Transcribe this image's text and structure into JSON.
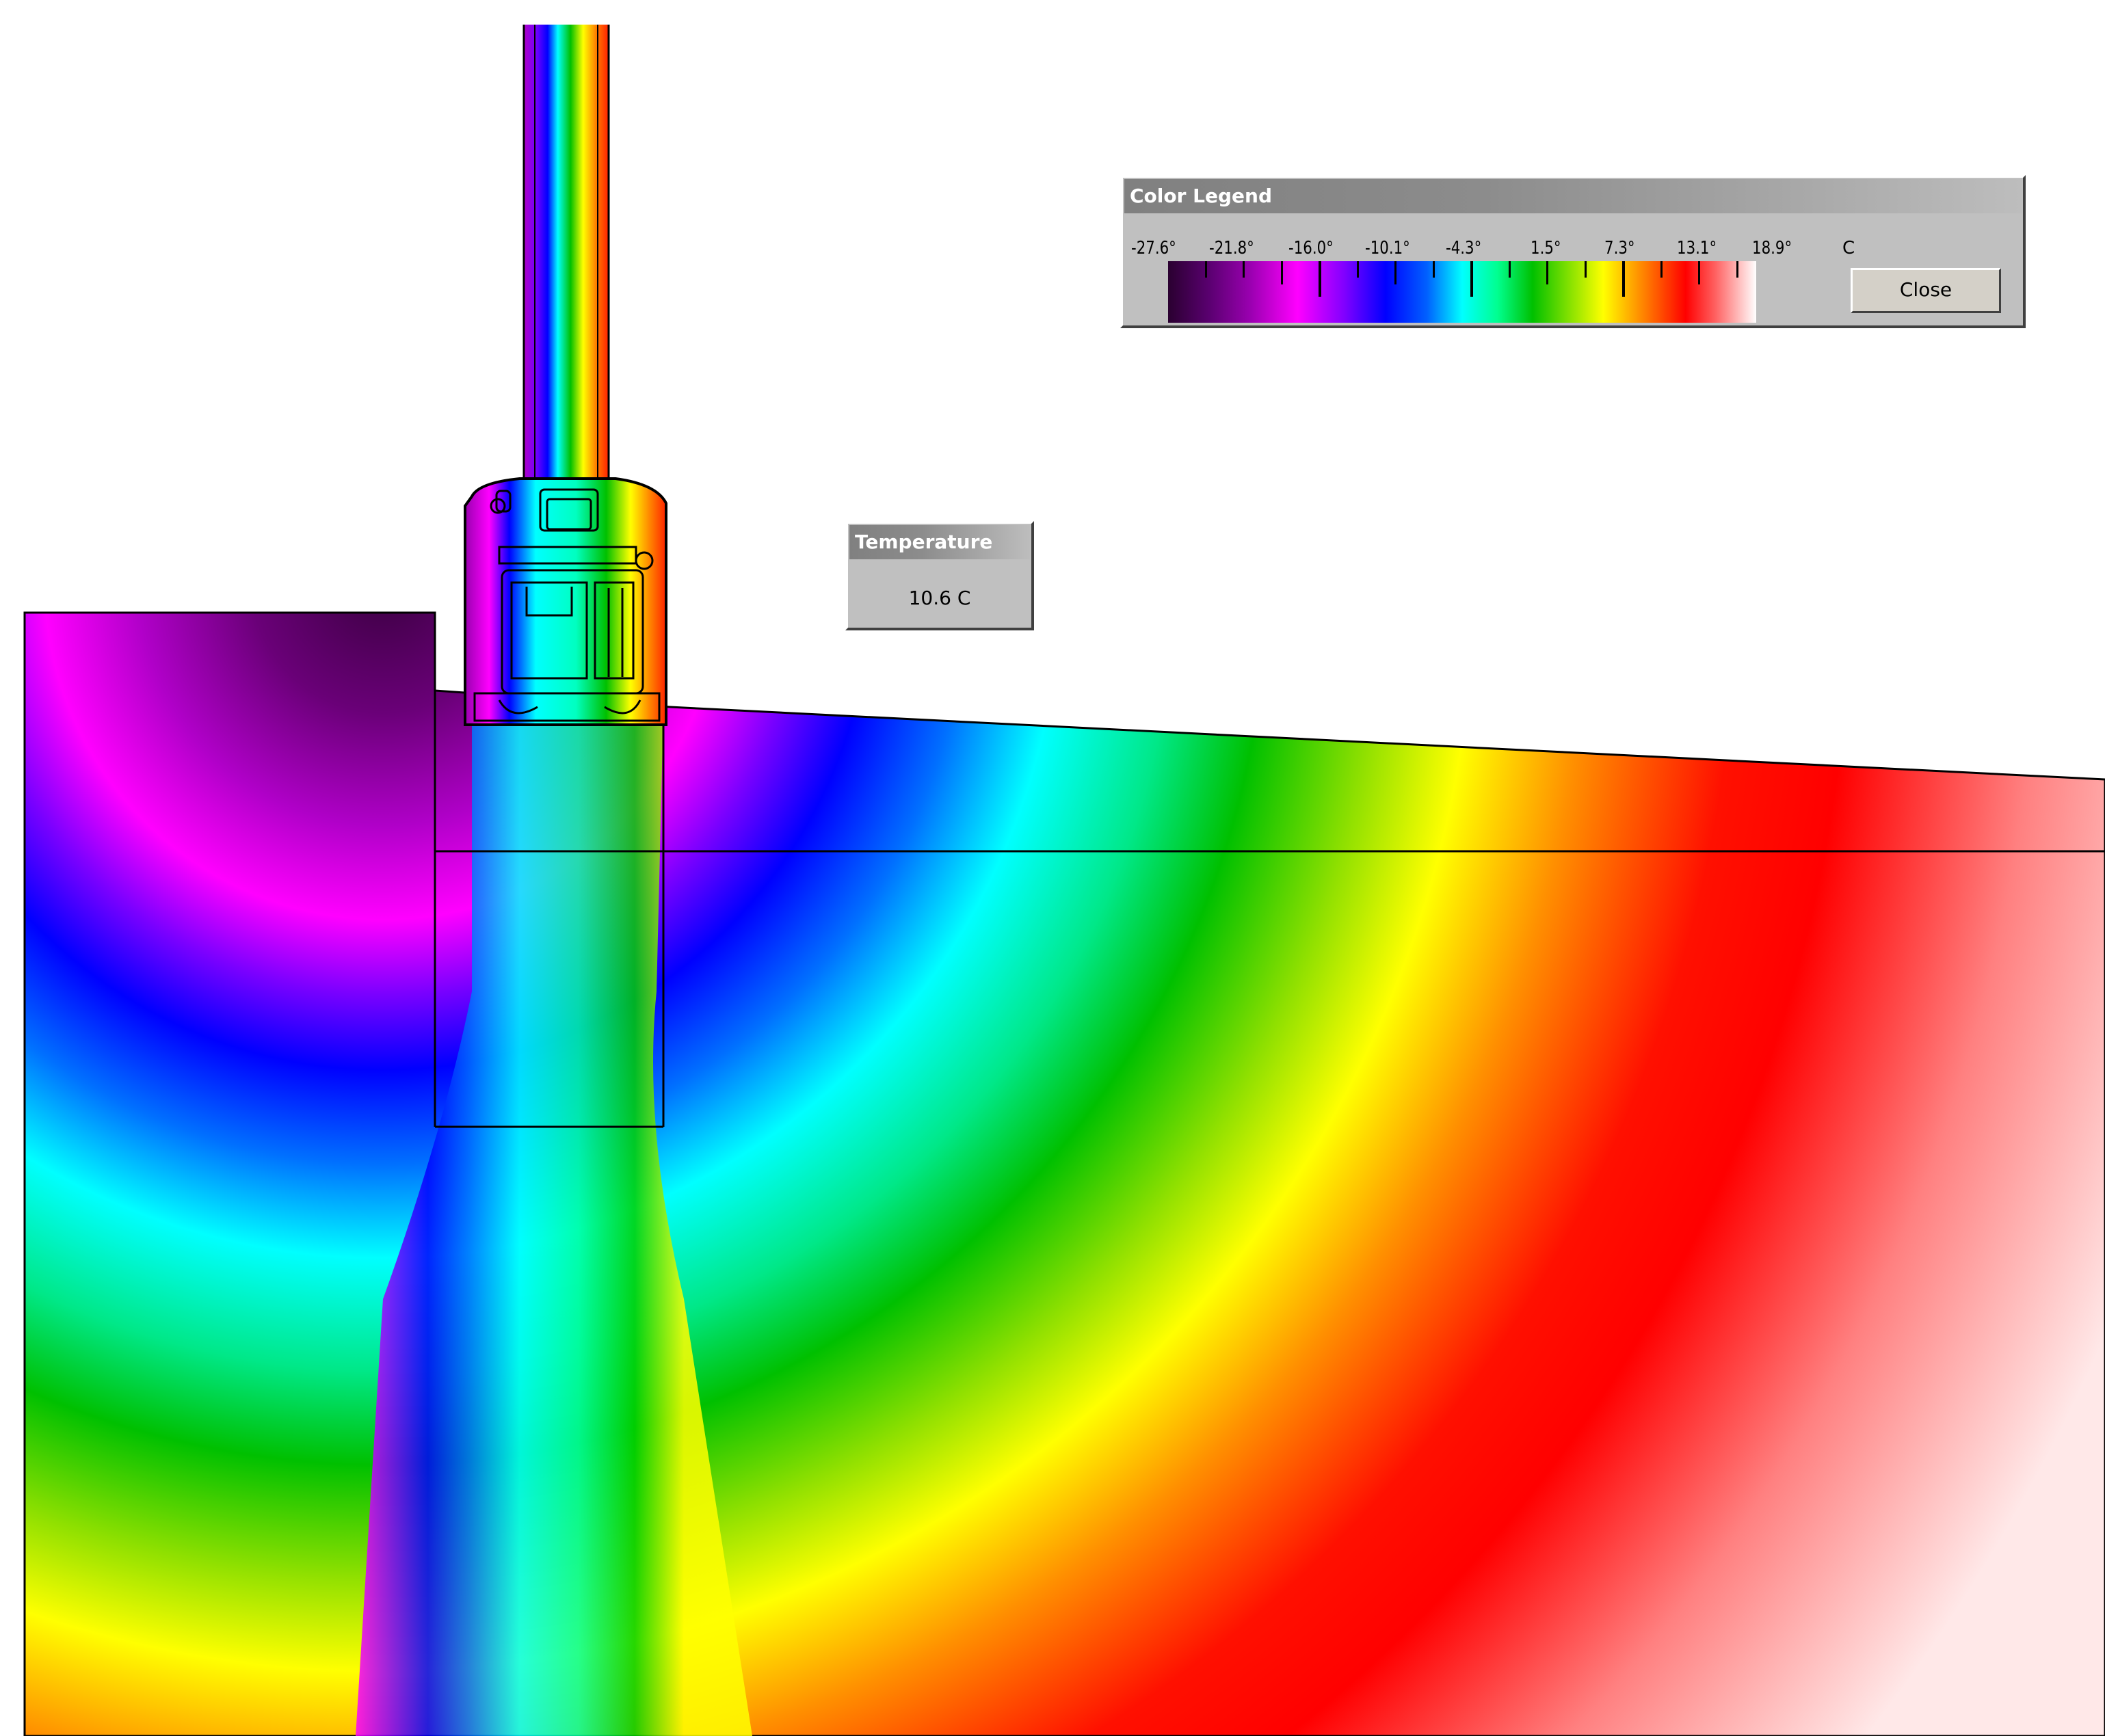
{
  "legend": {
    "title": "Color Legend",
    "tick_labels": [
      "-27.6°",
      "-21.8°",
      "-16.0°",
      "-10.1°",
      "-4.3°",
      "1.5°",
      "7.3°",
      "13.1°",
      "18.9°"
    ],
    "unit": "C",
    "close_label": "Close",
    "range_c": [
      -27.6,
      21.8
    ]
  },
  "temperature": {
    "title": "Temperature",
    "value": "10.6 C"
  },
  "colors": {
    "cold": "#2a0030",
    "purple": "#9a00b0",
    "magenta": "#ff00ff",
    "blue": "#0000ff",
    "cyan": "#00ffff",
    "green": "#00c000",
    "yellow": "#ffff00",
    "orange": "#ff8000",
    "red": "#ff0000",
    "warm": "#ffffff"
  }
}
